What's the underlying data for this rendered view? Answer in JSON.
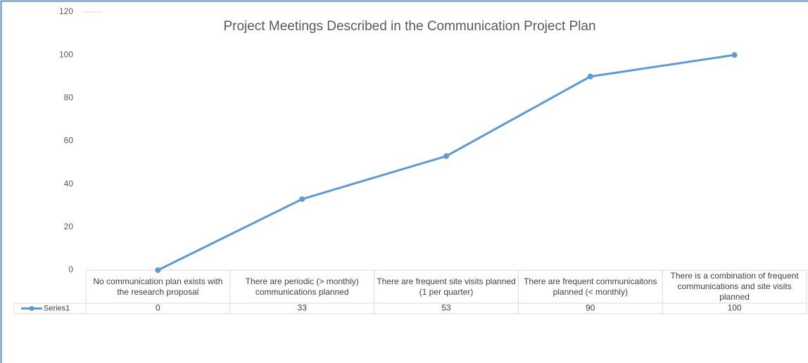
{
  "chart_data": {
    "type": "line",
    "title": "Project Meetings Described in the Communication Project Plan",
    "categories": [
      "No communication plan exists with the research proposal",
      "There are periodic (> monthly) communications planned",
      "There are frequent site visits planned (1 per quarter)",
      "There are frequent communicaitons planned (< monthly)",
      "There is a combination of frequent communications and site visits planned"
    ],
    "series": [
      {
        "name": "Series1",
        "color": "#5b9bd5",
        "values": [
          0,
          33,
          53,
          90,
          100
        ]
      }
    ],
    "ylim": [
      0,
      120
    ],
    "yticks": [
      0,
      20,
      40,
      60,
      80,
      100,
      120
    ],
    "grid": false
  }
}
